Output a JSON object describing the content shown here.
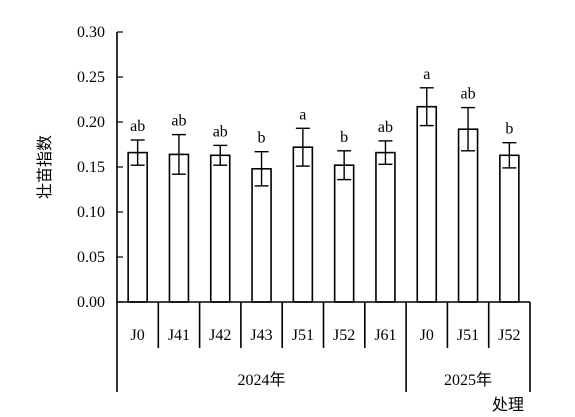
{
  "chart_data": {
    "type": "bar",
    "title": "",
    "ylabel": "壮苗指数",
    "xlabel": "处理",
    "ylim": [
      0,
      0.3
    ],
    "yticks": [
      "0.00",
      "0.05",
      "0.10",
      "0.15",
      "0.20",
      "0.25",
      "0.30"
    ],
    "ytick_values": [
      0,
      0.05,
      0.1,
      0.15,
      0.2,
      0.25,
      0.3
    ],
    "categories": [
      "J0",
      "J41",
      "J42",
      "J43",
      "J51",
      "J52",
      "J61",
      "J0",
      "J51",
      "J52"
    ],
    "values": [
      0.166,
      0.164,
      0.163,
      0.148,
      0.172,
      0.152,
      0.166,
      0.217,
      0.192,
      0.163
    ],
    "errors": [
      0.014,
      0.022,
      0.011,
      0.019,
      0.021,
      0.016,
      0.013,
      0.021,
      0.024,
      0.014
    ],
    "significance": [
      "ab",
      "ab",
      "ab",
      "b",
      "a",
      "b",
      "ab",
      "a",
      "ab",
      "b"
    ],
    "groups": [
      {
        "label": "2024年",
        "count": 7
      },
      {
        "label": "2025年",
        "count": 3
      }
    ],
    "grid": false,
    "legend": "none",
    "bar_color": "#ffffff",
    "edge_color": "#000000"
  }
}
